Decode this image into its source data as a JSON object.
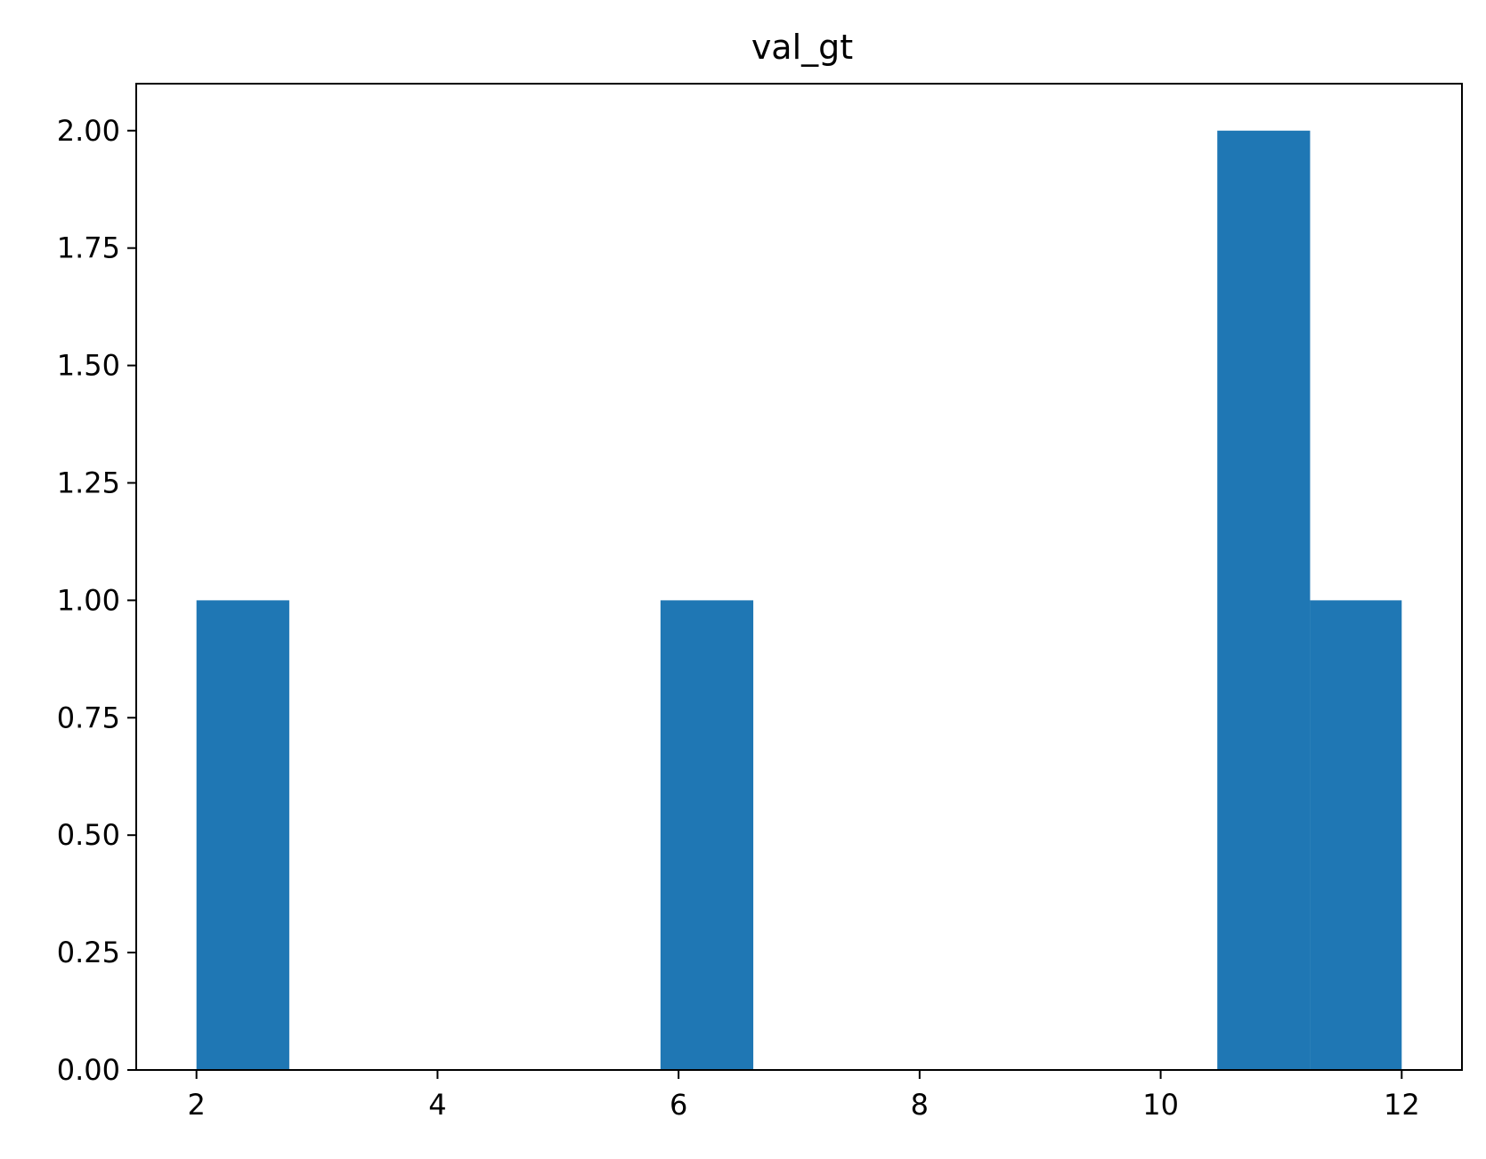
{
  "chart_data": {
    "type": "bar",
    "subtype": "histogram",
    "title": "val_gt",
    "xlabel": "",
    "ylabel": "",
    "xlim": [
      1.5,
      12.5
    ],
    "ylim": [
      0,
      2.1
    ],
    "grid": false,
    "legend": "none",
    "bar_color": "#1f77b4",
    "bins": [
      {
        "x0": 2.0,
        "x1": 2.77,
        "count": 1
      },
      {
        "x0": 2.77,
        "x1": 3.54,
        "count": 0
      },
      {
        "x0": 3.54,
        "x1": 4.31,
        "count": 0
      },
      {
        "x0": 4.31,
        "x1": 5.08,
        "count": 0
      },
      {
        "x0": 5.08,
        "x1": 5.85,
        "count": 0
      },
      {
        "x0": 5.85,
        "x1": 6.62,
        "count": 1
      },
      {
        "x0": 6.62,
        "x1": 7.39,
        "count": 0
      },
      {
        "x0": 7.39,
        "x1": 8.16,
        "count": 0
      },
      {
        "x0": 8.16,
        "x1": 8.93,
        "count": 0
      },
      {
        "x0": 8.93,
        "x1": 9.7,
        "count": 0
      },
      {
        "x0": 9.7,
        "x1": 10.47,
        "count": 0
      },
      {
        "x0": 10.47,
        "x1": 11.24,
        "count": 2
      },
      {
        "x0": 11.24,
        "x1": 12.0,
        "count": 1
      }
    ],
    "x_ticks": [
      {
        "value": 2,
        "label": "2"
      },
      {
        "value": 4,
        "label": "4"
      },
      {
        "value": 6,
        "label": "6"
      },
      {
        "value": 8,
        "label": "8"
      },
      {
        "value": 10,
        "label": "10"
      },
      {
        "value": 12,
        "label": "12"
      }
    ],
    "y_ticks": [
      {
        "value": 0,
        "label": "0.00"
      },
      {
        "value": 0.25,
        "label": "0.25"
      },
      {
        "value": 0.5,
        "label": "0.50"
      },
      {
        "value": 0.75,
        "label": "0.75"
      },
      {
        "value": 1.0,
        "label": "1.00"
      },
      {
        "value": 1.25,
        "label": "1.25"
      },
      {
        "value": 1.5,
        "label": "1.50"
      },
      {
        "value": 1.75,
        "label": "1.75"
      },
      {
        "value": 2.0,
        "label": "2.00"
      }
    ]
  }
}
